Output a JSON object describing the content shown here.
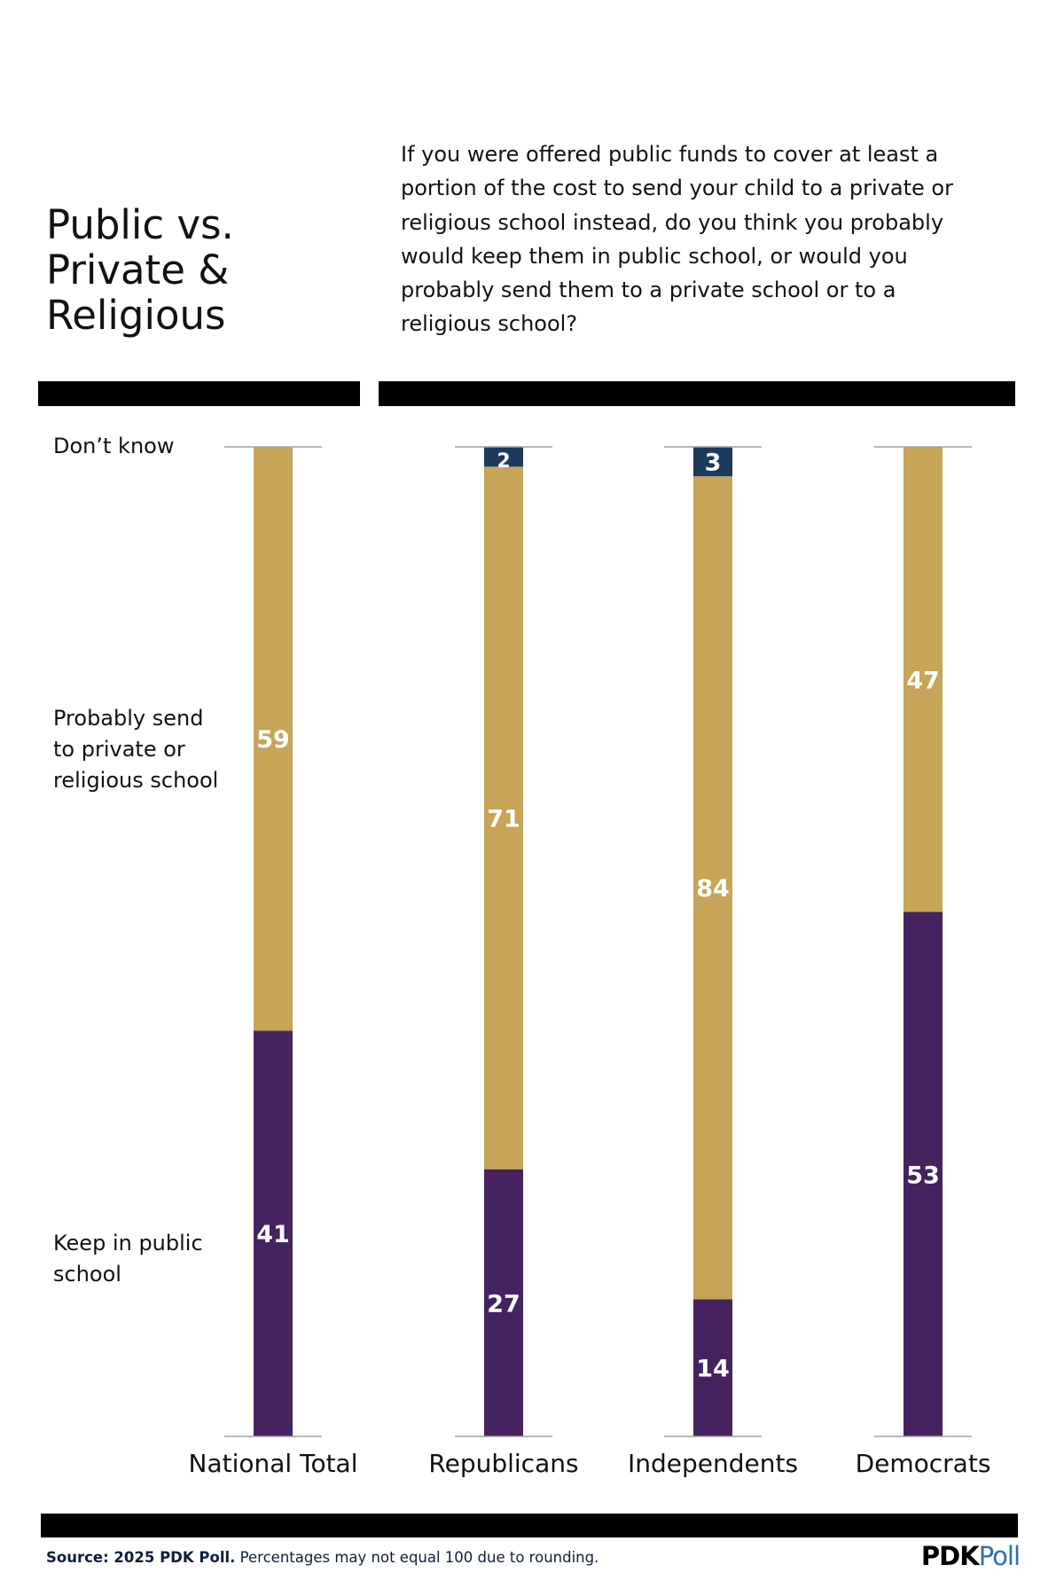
{
  "title_lines": [
    "Public vs.",
    "Private &",
    "Religious"
  ],
  "question": "If you were offered public funds to cover at least a portion of the cost to send your child to a private or religious school instead, do you think you probably would keep them in public school, or would you probably send them to a private school or to a religious school?",
  "legend": {
    "dont_know": "Don’t know",
    "private_lines": [
      "Probably send",
      "to private or",
      "religious school"
    ],
    "public_lines": [
      "Keep in public",
      "school"
    ]
  },
  "chart_data": {
    "type": "bar",
    "stacked": true,
    "categories": [
      "National Total",
      "Republicans",
      "Independents",
      "Democrats"
    ],
    "series": [
      {
        "name": "Keep in public school",
        "color": "#45235E",
        "values": [
          41,
          27,
          14,
          53
        ]
      },
      {
        "name": "Probably send to private or religious school",
        "color": "#C6A458",
        "values": [
          59,
          71,
          84,
          47
        ]
      },
      {
        "name": "Don’t know",
        "color": "#1B3A5C",
        "values": [
          0,
          2,
          3,
          0
        ]
      }
    ],
    "ylim": [
      0,
      100
    ]
  },
  "footer": {
    "source_bold": "Source: 2025 PDK Poll.",
    "source_rest": " Percentages may not equal 100 due to rounding."
  },
  "logo": {
    "a": "PDK",
    "b": "Poll"
  }
}
